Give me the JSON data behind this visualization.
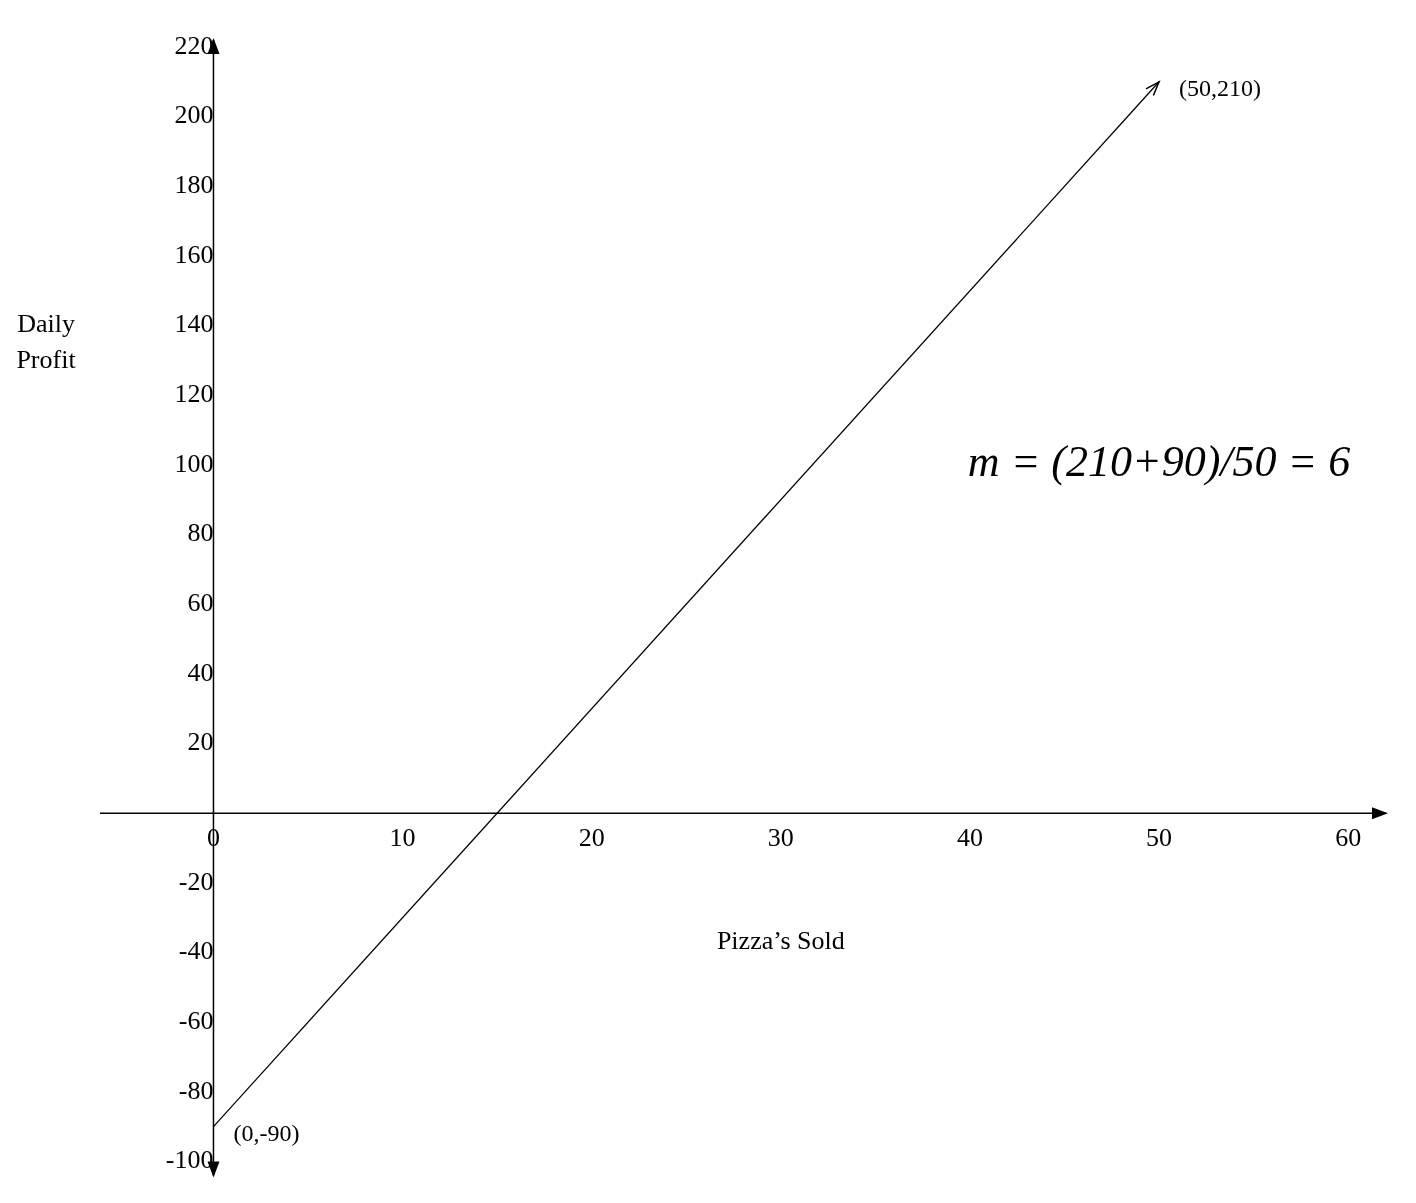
{
  "chart_data": {
    "type": "line",
    "xlabel": "Pizza’s Sold",
    "ylabel": "Daily Profit",
    "series": [
      {
        "x": [
          0,
          50
        ],
        "values": [
          -90,
          210
        ],
        "color": "#000000"
      }
    ],
    "xlim": [
      -6,
      62
    ],
    "ylim": [
      -104,
      222
    ],
    "xticks": [
      0,
      10,
      20,
      30,
      40,
      50,
      60
    ],
    "yticks": [
      -100,
      -80,
      -60,
      -40,
      -20,
      20,
      40,
      60,
      80,
      100,
      120,
      140,
      160,
      180,
      200,
      220
    ],
    "grid": false,
    "legend": false,
    "marker": "none",
    "line_style": "solid",
    "annotations": [
      {
        "text": "(50,210)",
        "x": 50,
        "y": 210
      },
      {
        "text": "(0,-90)",
        "x": 0,
        "y": -90
      },
      "m = (210+90)/50 = 6"
    ]
  }
}
